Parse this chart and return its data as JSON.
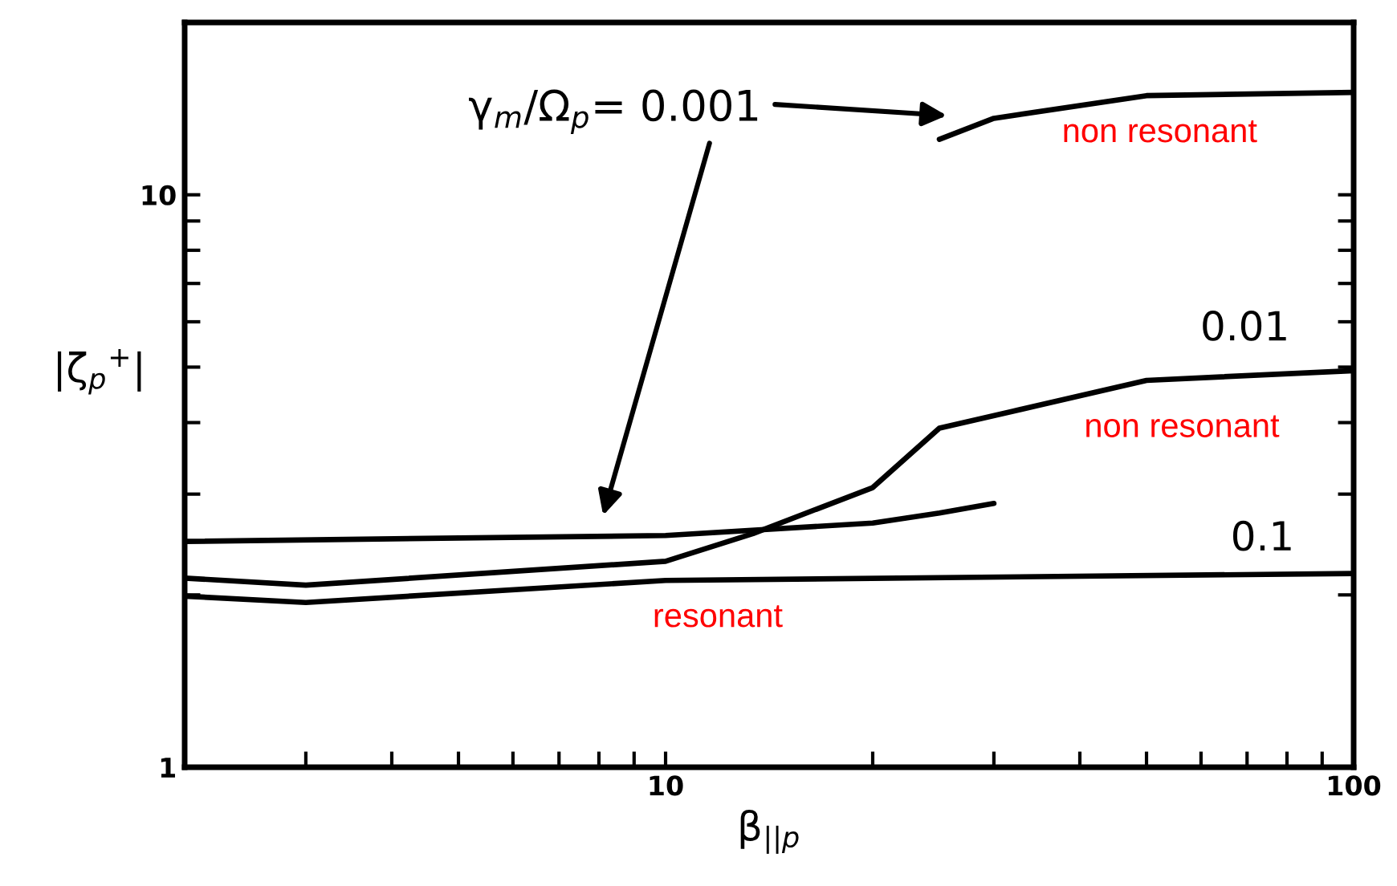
{
  "chart_data": {
    "type": "line",
    "xlabel": "β$_{||p}$",
    "ylabel": "|ζ$_{p}$$^{+}$|",
    "log": "xy",
    "xlim": [
      2,
      100
    ],
    "ylim": [
      1,
      20
    ],
    "xticks": [
      {
        "value": 2,
        "label": null
      },
      {
        "value": 3,
        "label": null
      },
      {
        "value": 4,
        "label": null
      },
      {
        "value": 5,
        "label": null
      },
      {
        "value": 6,
        "label": null
      },
      {
        "value": 7,
        "label": null
      },
      {
        "value": 8,
        "label": null
      },
      {
        "value": 9,
        "label": null
      },
      10,
      {
        "value": 20,
        "label": null
      },
      {
        "value": 30,
        "label": null
      },
      {
        "value": 40,
        "label": null
      },
      {
        "value": 50,
        "label": null
      },
      {
        "value": 60,
        "label": null
      },
      {
        "value": 70,
        "label": null
      },
      {
        "value": 80,
        "label": null
      },
      {
        "value": 90,
        "label": null
      },
      100
    ],
    "yticks": [
      1,
      {
        "value": 2,
        "label": null
      },
      {
        "value": 3,
        "label": null
      },
      {
        "value": 4,
        "label": null
      },
      {
        "value": 5,
        "label": null
      },
      {
        "value": 6,
        "label": null
      },
      {
        "value": 7,
        "label": null
      },
      {
        "value": 8,
        "label": null
      },
      {
        "value": 9,
        "label": null
      },
      10,
      {
        "value": 20,
        "label": null
      }
    ],
    "grid": false,
    "marker": "none",
    "line_style": "solid",
    "series": [
      {
        "color": "#000000",
        "x": [
          2,
          10,
          20,
          25,
          30
        ],
        "values": [
          2.48,
          2.54,
          2.67,
          2.78,
          2.89
        ]
      },
      {
        "color": "#000000",
        "x": [
          25,
          30,
          50,
          100
        ],
        "values": [
          12.5,
          13.6,
          14.9,
          15.1
        ]
      },
      {
        "color": "#000000",
        "x": [
          2,
          3,
          10,
          13.4,
          20,
          25,
          50,
          100
        ],
        "values": [
          2.14,
          2.08,
          2.29,
          2.56,
          3.08,
          3.91,
          4.74,
          4.93
        ]
      },
      {
        "color": "#000000",
        "x": [
          2,
          3,
          10,
          100
        ],
        "values": [
          1.99,
          1.94,
          2.12,
          2.18
        ]
      }
    ],
    "annotations": [
      "γ$_{m}$/Ω$_{p}$= 0.001",
      "0.01",
      "0.1",
      "non resonant",
      "non resonant",
      "resonant"
    ]
  }
}
